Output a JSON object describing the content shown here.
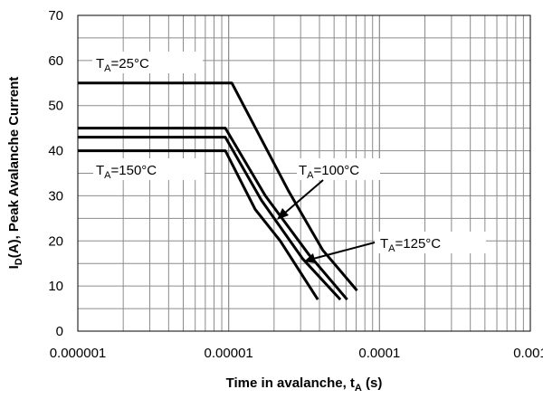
{
  "chart_data": {
    "type": "line",
    "xlabel": "Time in avalanche, t",
    "xlabel_sub": "A",
    "xlabel_unit": " (s)",
    "ylabel_pre": "I",
    "ylabel_sub": "D",
    "ylabel_post": "(A), Peak Avalanche Current",
    "x_scale": "log",
    "xlim": [
      1e-06,
      0.001
    ],
    "ylim": [
      0,
      70
    ],
    "x_ticks": [
      "0.000001",
      "0.00001",
      "0.0001",
      "0.001"
    ],
    "y_ticks": [
      "0",
      "10",
      "20",
      "30",
      "40",
      "50",
      "60",
      "70"
    ],
    "grid": true,
    "series": [
      {
        "name": "25°C",
        "points": [
          [
            1e-06,
            55
          ],
          [
            1.05e-05,
            55
          ],
          [
            2.5e-05,
            31
          ],
          [
            4.2e-05,
            18
          ],
          [
            7.1e-05,
            9
          ]
        ]
      },
      {
        "name": "100°C",
        "points": [
          [
            1e-06,
            45
          ],
          [
            9.5e-06,
            45
          ],
          [
            1.75e-05,
            30
          ],
          [
            3.4e-05,
            17
          ],
          [
            6.1e-05,
            7
          ]
        ]
      },
      {
        "name": "125°C",
        "points": [
          [
            1e-06,
            43
          ],
          [
            9.5e-06,
            43
          ],
          [
            1.65e-05,
            29
          ],
          [
            3.1e-05,
            16
          ],
          [
            5.5e-05,
            7
          ]
        ]
      },
      {
        "name": "150°C",
        "points": [
          [
            1e-06,
            40
          ],
          [
            9.5e-06,
            40
          ],
          [
            1.5e-05,
            27
          ],
          [
            2.2e-05,
            20
          ],
          [
            3.9e-05,
            7
          ]
        ]
      }
    ],
    "annotations": [
      {
        "prefix": "T",
        "sub": "A",
        "text": "=25°C"
      },
      {
        "prefix": "T",
        "sub": "A",
        "text": "=100°C"
      },
      {
        "prefix": "T",
        "sub": "A",
        "text": "=125°C"
      },
      {
        "prefix": "T",
        "sub": "A",
        "text": "=150°C"
      }
    ],
    "line_color": "#000000"
  }
}
